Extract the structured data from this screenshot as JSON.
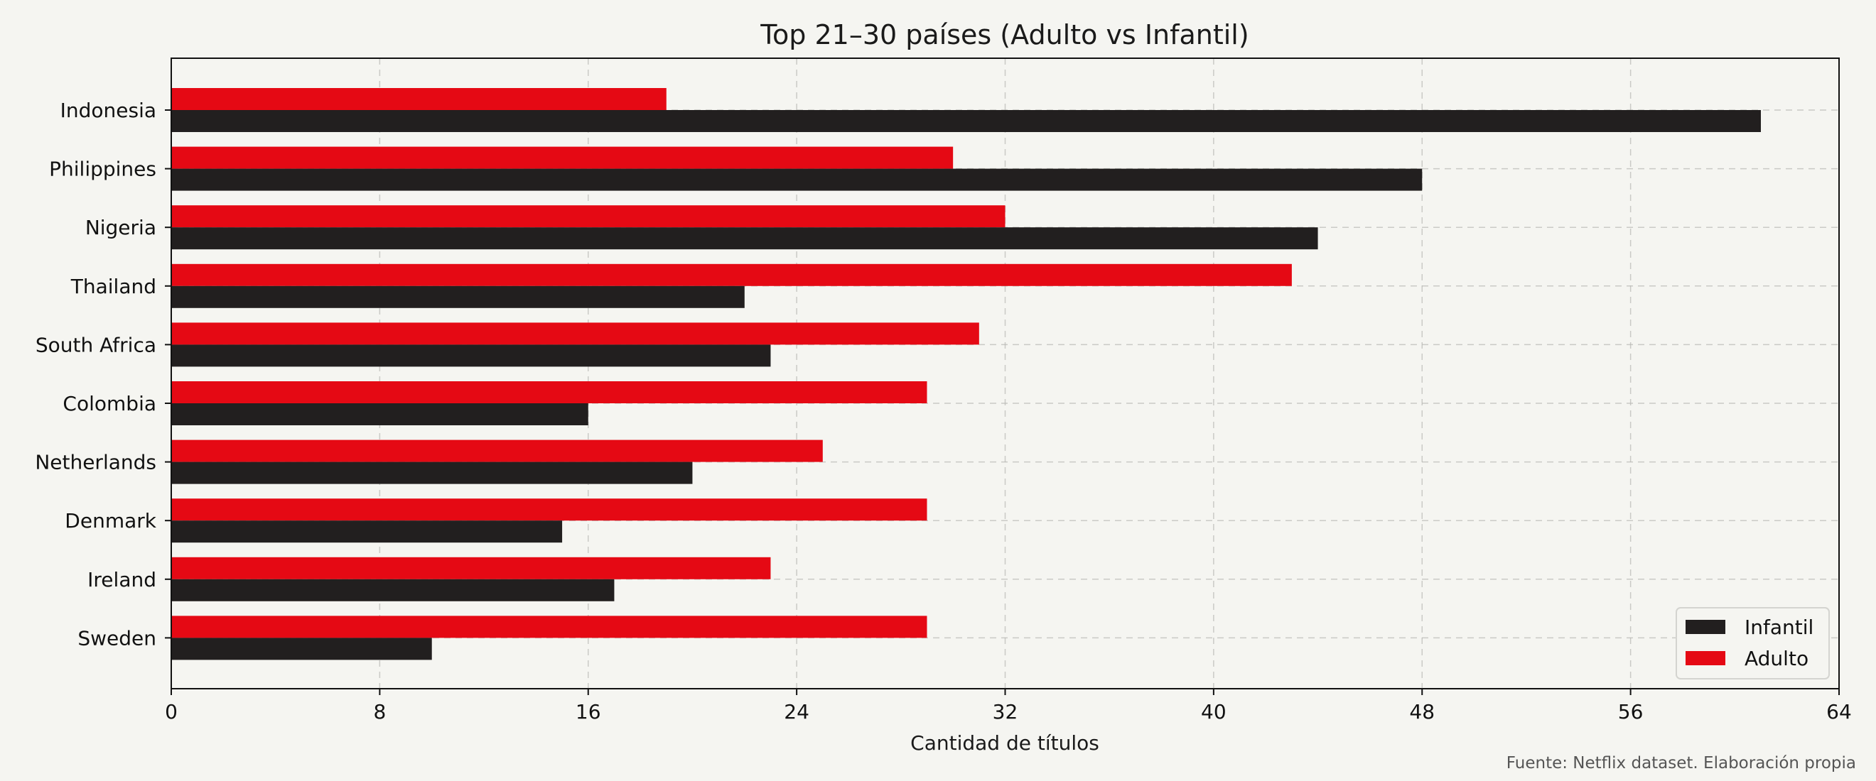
{
  "chart_data": {
    "type": "bar",
    "orientation": "horizontal",
    "title": "Top 21–30 países (Adulto vs Infantil)",
    "xlabel": "Cantidad de títulos",
    "ylabel": "",
    "categories": [
      "Indonesia",
      "Philippines",
      "Nigeria",
      "Thailand",
      "South Africa",
      "Colombia",
      "Netherlands",
      "Denmark",
      "Ireland",
      "Sweden"
    ],
    "series": [
      {
        "name": "Infantil",
        "color": "#221f1f",
        "values": [
          61,
          48,
          44,
          22,
          23,
          16,
          20,
          15,
          17,
          10
        ]
      },
      {
        "name": "Adulto",
        "color": "#e50914",
        "values": [
          19,
          30,
          32,
          43,
          31,
          29,
          25,
          29,
          23,
          29
        ]
      }
    ],
    "xlim": [
      0,
      64
    ],
    "xticks": [
      0,
      8,
      16,
      24,
      32,
      40,
      48,
      56,
      64
    ],
    "grid": true,
    "legend_position": "lower-right",
    "source_note": "Fuente: Netflix dataset. Elaboración propia"
  }
}
